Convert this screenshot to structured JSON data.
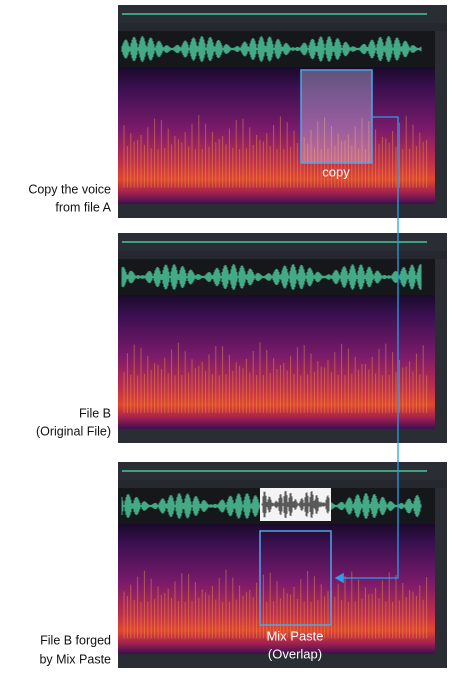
{
  "labels": {
    "file_a": [
      "Copy the voice",
      "from file A"
    ],
    "file_b": [
      "File B",
      "(Original File)"
    ],
    "file_b_forged": [
      "File B forged",
      "by Mix Paste"
    ]
  },
  "annotations": {
    "copy": "copy",
    "mix_paste": [
      "Mix Paste",
      "(Overlap)"
    ]
  }
}
